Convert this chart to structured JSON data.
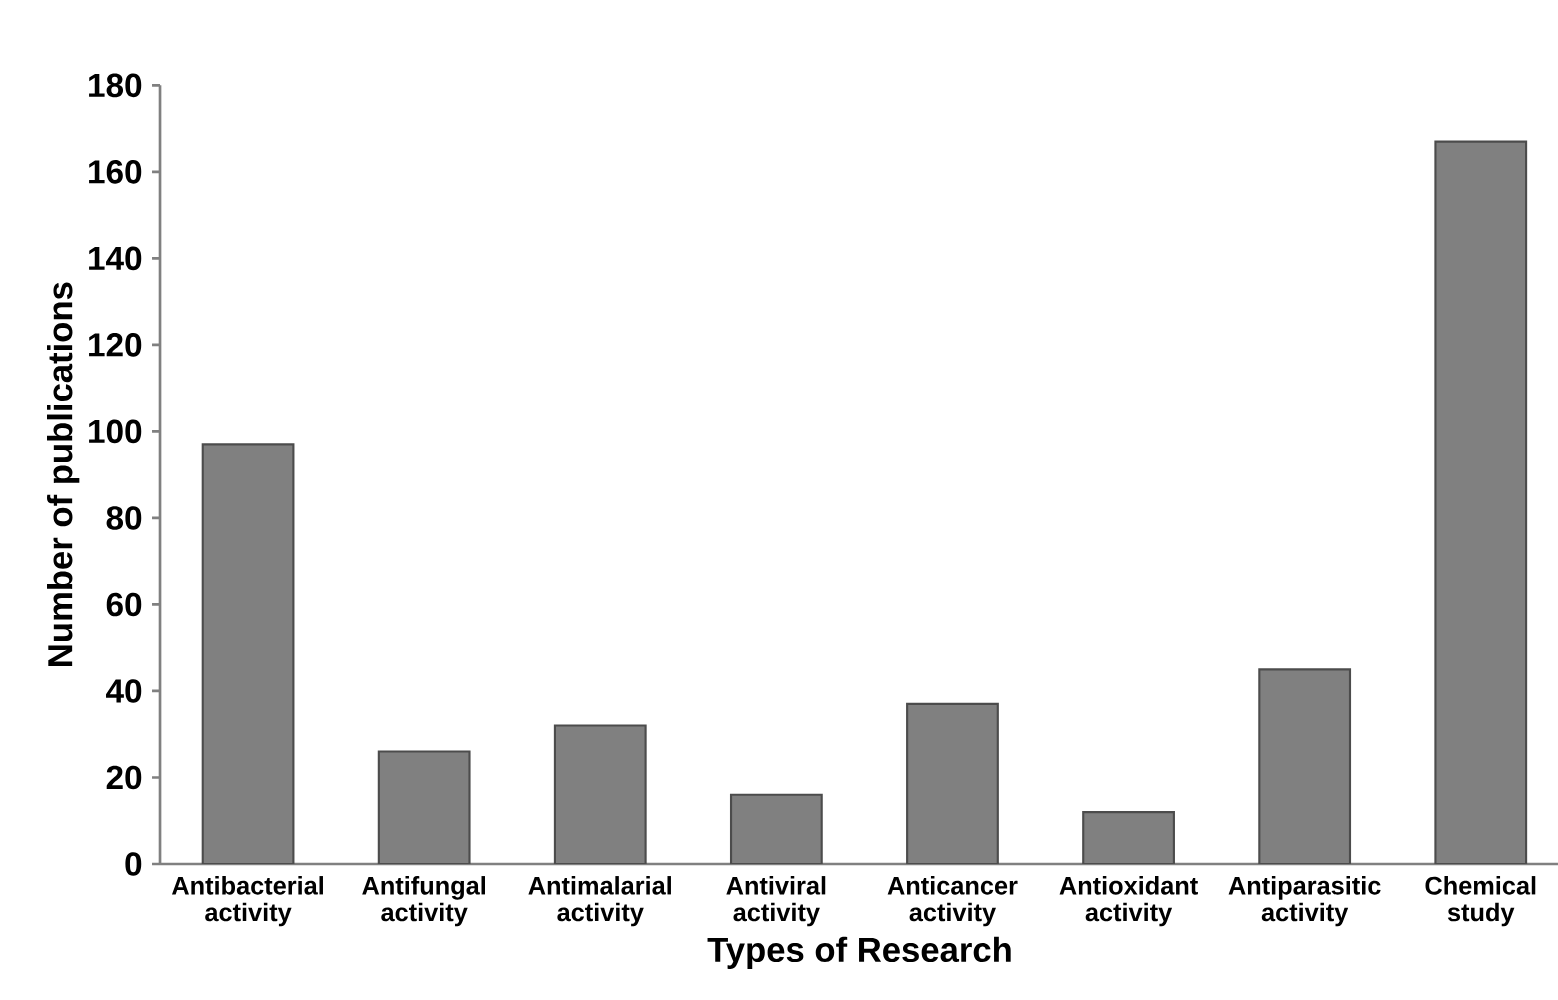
{
  "chart_data": {
    "type": "bar",
    "xlabel": "Types of Research",
    "ylabel": "Number of publications",
    "categories": [
      "Antibacterial activity",
      "Antifungal activity",
      "Antimalarial activity",
      "Antiviral activity",
      "Anticancer activity",
      "Antioxidant activity",
      "Antiparasitic activity",
      "Chemical study"
    ],
    "values": [
      97,
      26,
      32,
      16,
      37,
      12,
      45,
      167
    ],
    "color": "#808080",
    "ylim": [
      0,
      180
    ],
    "yticks": [
      0,
      20,
      40,
      60,
      80,
      100,
      120,
      140,
      160,
      180
    ],
    "grid": false
  }
}
